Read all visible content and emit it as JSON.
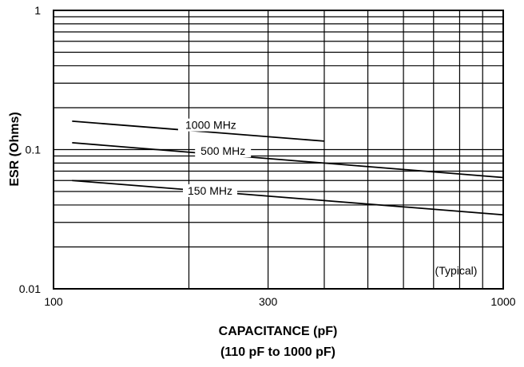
{
  "chart_data": {
    "type": "line",
    "xscale": "log",
    "yscale": "log",
    "xlim": [
      100,
      1000
    ],
    "ylim": [
      0.01,
      1
    ],
    "grid": true,
    "xlabel": "CAPACITANCE (pF)",
    "xlabel_sub": "(110 pF to 1000  pF)",
    "ylabel": "ESR (Ohms)",
    "annotation": "(Typical)",
    "x_ticks": [
      {
        "value": 100,
        "label": "100"
      },
      {
        "value": 300,
        "label": "300"
      },
      {
        "value": 1000,
        "label": "1000"
      }
    ],
    "y_ticks": [
      {
        "value": 1,
        "label": "1"
      },
      {
        "value": 0.1,
        "label": "0.1"
      },
      {
        "value": 0.01,
        "label": "0.01"
      }
    ],
    "series": [
      {
        "name": "1000 MHz",
        "x": [
          110,
          400
        ],
        "y": [
          0.16,
          0.115
        ]
      },
      {
        "name": "500 MHz",
        "x": [
          110,
          1000
        ],
        "y": [
          0.112,
          0.063
        ]
      },
      {
        "name": "150 MHz",
        "x": [
          110,
          1000
        ],
        "y": [
          0.06,
          0.034
        ]
      }
    ]
  }
}
